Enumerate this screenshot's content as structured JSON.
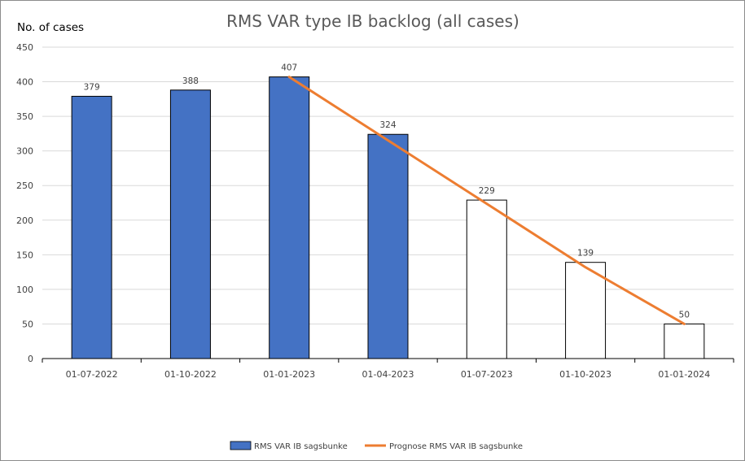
{
  "chart_data": {
    "type": "bar",
    "title": "RMS VAR type IB backlog (all cases)",
    "xlabel": "",
    "ylabel": "No. of cases",
    "ylim": [
      0,
      450
    ],
    "yticks": [
      0,
      50,
      100,
      150,
      200,
      250,
      300,
      350,
      400,
      450
    ],
    "grid": true,
    "legend_position": "bottom",
    "categories": [
      "01-07-2022",
      "01-10-2022",
      "01-01-2023",
      "01-04-2023",
      "01-07-2023",
      "01-10-2023",
      "01-01-2024"
    ],
    "series": [
      {
        "name": "RMS VAR IB sagsbunke",
        "type": "bar",
        "values": [
          379,
          388,
          407,
          324,
          229,
          139,
          50
        ],
        "fills": [
          "filled",
          "filled",
          "filled",
          "filled",
          "hollow",
          "hollow",
          "hollow"
        ]
      },
      {
        "name": "Prognose RMS VAR IB sagsbunke",
        "type": "line",
        "values": [
          null,
          null,
          407,
          315.3,
          223.7,
          132.0,
          50
        ]
      }
    ],
    "data_labels": [
      "379",
      "388",
      "407",
      "324",
      "229",
      "139",
      "50"
    ],
    "colors": {
      "bar_fill": "#4472C4",
      "bar_hollow": "#ffffff",
      "bar_edge": "#000000",
      "line": "#ED7D31",
      "grid": "#d9d9d9",
      "axis": "#000000"
    }
  }
}
